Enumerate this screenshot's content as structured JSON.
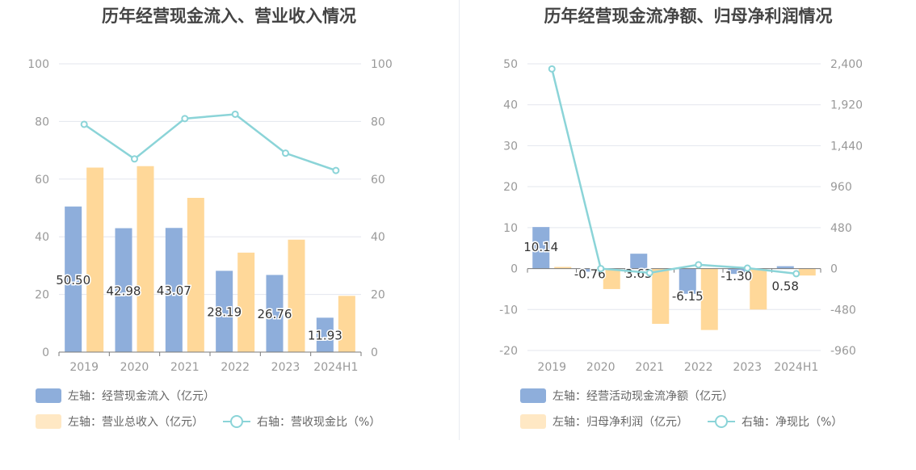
{
  "chart_data": [
    {
      "type": "bar",
      "title": "历年经营现金流入、营业收入情况",
      "categories": [
        "2019",
        "2020",
        "2021",
        "2022",
        "2023",
        "2024H1"
      ],
      "left_axis": {
        "ylim": [
          0,
          100
        ],
        "ticks": [
          0,
          20,
          40,
          60,
          80,
          100
        ]
      },
      "right_axis": {
        "ylim": [
          0,
          100
        ],
        "ticks": [
          0,
          20,
          40,
          60,
          80,
          100
        ]
      },
      "series": [
        {
          "name": "左轴：经营现金流入（亿元）",
          "kind": "bar",
          "axis": "left",
          "color": "#8eaedb",
          "values": [
            50.5,
            42.98,
            43.07,
            28.19,
            26.76,
            11.93
          ],
          "labels": [
            "50.50",
            "42.98",
            "43.07",
            "28.19",
            "26.76",
            "11.93"
          ]
        },
        {
          "name": "左轴：营业总收入（亿元）",
          "kind": "bar",
          "axis": "left",
          "color": "#ffd899",
          "values": [
            64,
            64.5,
            53.5,
            34.5,
            39,
            19.5
          ]
        },
        {
          "name": "右轴：营收现金比（%）",
          "kind": "line",
          "axis": "right",
          "color": "#8bd4d8",
          "values": [
            79,
            67,
            81,
            82.5,
            69,
            63
          ]
        }
      ],
      "grid": true,
      "legend_position": "bottom"
    },
    {
      "type": "bar",
      "title": "历年经营现金流净额、归母净利润情况",
      "categories": [
        "2019",
        "2020",
        "2021",
        "2022",
        "2023",
        "2024H1"
      ],
      "left_axis": {
        "ylim": [
          -20,
          50
        ],
        "ticks": [
          -20,
          -10,
          0,
          10,
          20,
          30,
          40,
          50
        ]
      },
      "right_axis": {
        "ylim": [
          -960,
          2400
        ],
        "ticks": [
          -960,
          -480,
          0,
          480,
          960,
          1440,
          1920,
          2400
        ],
        "tick_labels": [
          "-960",
          "-480",
          "0",
          "480",
          "960",
          "1,440",
          "1,920",
          "2,400"
        ]
      },
      "series": [
        {
          "name": "左轴：经营活动现金流净额（亿元）",
          "kind": "bar",
          "axis": "left",
          "color": "#8eaedb",
          "values": [
            10.14,
            -0.76,
            3.63,
            -6.15,
            -1.3,
            0.58
          ],
          "labels": [
            "10.14",
            "-0.76",
            "3.63",
            "-6.15",
            "-1.30",
            "0.58"
          ]
        },
        {
          "name": "左轴：归母净利润（亿元）",
          "kind": "bar",
          "axis": "left",
          "color": "#ffd899",
          "values": [
            0.4,
            -5,
            -13.5,
            -15,
            -10,
            -1.7
          ]
        },
        {
          "name": "右轴：净现比（%）",
          "kind": "line",
          "axis": "right",
          "color": "#8bd4d8",
          "values": [
            2340,
            0,
            -50,
            45,
            5,
            -60
          ]
        }
      ],
      "grid": true,
      "legend_position": "bottom"
    }
  ]
}
